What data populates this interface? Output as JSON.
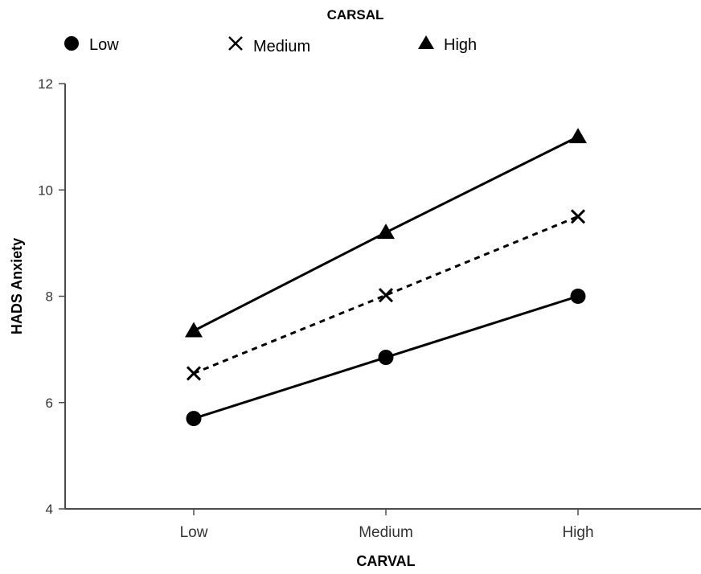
{
  "chart_data": {
    "type": "line",
    "legend": {
      "title": "CARSAL",
      "position": "top",
      "items": [
        {
          "label": "Low",
          "marker": "circle"
        },
        {
          "label": "Medium",
          "marker": "x"
        },
        {
          "label": "High",
          "marker": "triangle"
        }
      ]
    },
    "xlabel": "CARVAL",
    "ylabel": "HADS Anxiety",
    "categories": [
      "Low",
      "Medium",
      "High"
    ],
    "ylim": [
      4,
      12
    ],
    "yticks": [
      "4",
      "6",
      "8",
      "10",
      "12"
    ],
    "grid": false,
    "series": [
      {
        "name": "Low",
        "marker": "circle",
        "line_style": "solid",
        "values": [
          5.7,
          6.85,
          8.0
        ]
      },
      {
        "name": "Medium",
        "marker": "x",
        "line_style": "dashed",
        "values": [
          6.55,
          8.02,
          9.5
        ]
      },
      {
        "name": "High",
        "marker": "triangle",
        "line_style": "solid",
        "values": [
          7.35,
          9.2,
          11.0
        ]
      }
    ],
    "colors": {
      "lines": "#000000",
      "axis": "#4d4d4d",
      "ticks": "#333333"
    }
  }
}
